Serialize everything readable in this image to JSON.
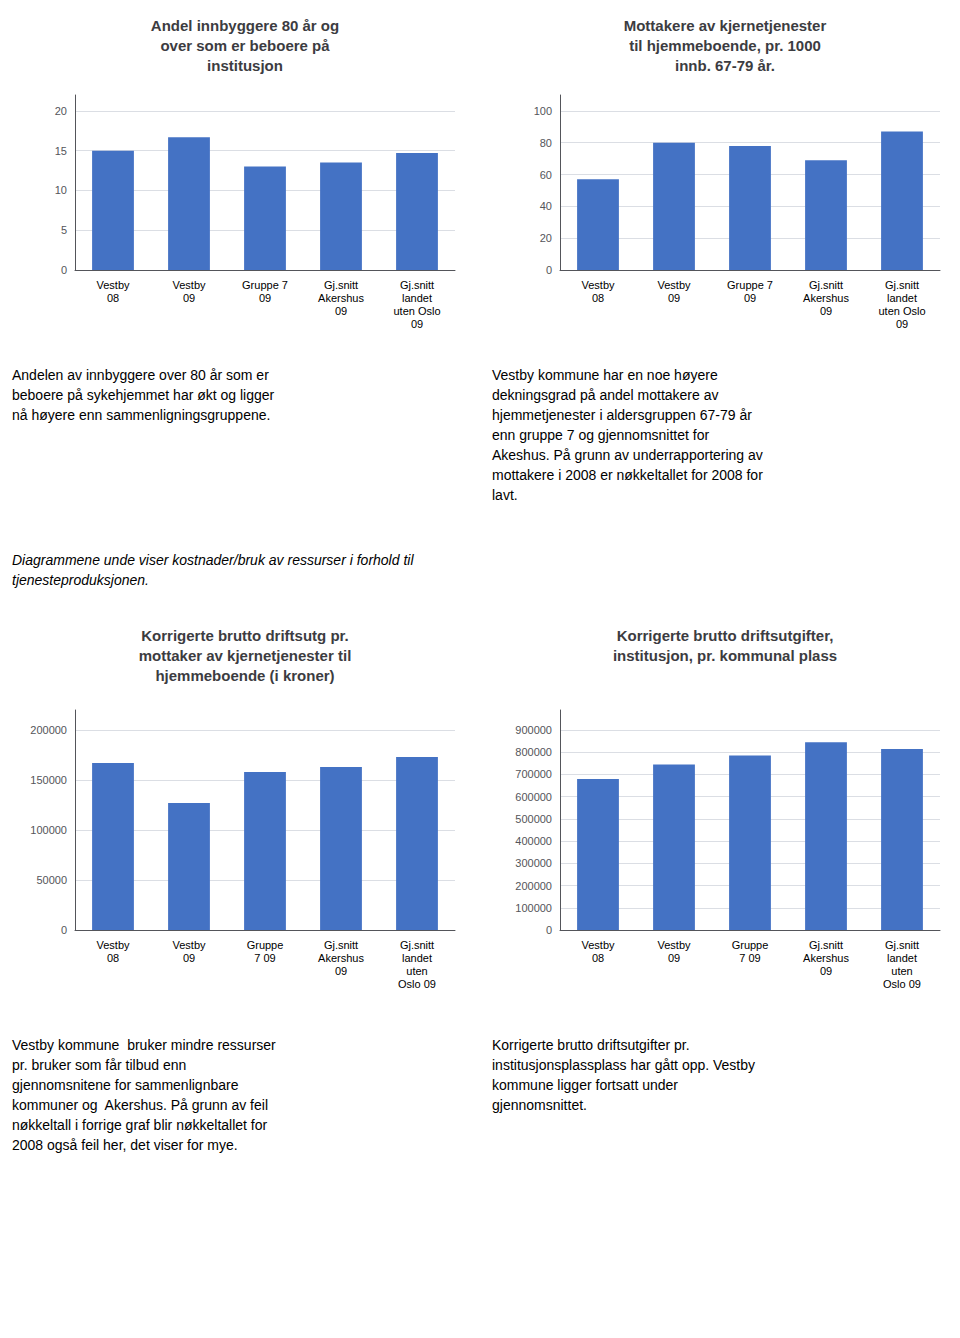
{
  "chart_data": [
    {
      "type": "bar",
      "title": "Andel innbyggere 80 år og\nover som er beboere på\ninstitusjon",
      "categories": [
        "Vestby\n08",
        "Vestby\n09",
        "Gruppe 7\n09",
        "Gj.snitt\nAkershus\n09",
        "Gj.snitt\nlandet\nuten Oslo\n09"
      ],
      "values": [
        15.0,
        16.7,
        13.0,
        13.5,
        14.7
      ],
      "color": "#4472C4",
      "ylim": [
        0,
        22
      ],
      "yticks": [
        0,
        5,
        10,
        15,
        20
      ],
      "grid": true
    },
    {
      "type": "bar",
      "title": "Mottakere av kjernetjenester\ntil hjemmeboende, pr. 1000\ninnb. 67-79 år.",
      "categories": [
        "Vestby\n08",
        "Vestby\n09",
        "Gruppe 7\n09",
        "Gj.snitt\nAkershus\n09",
        "Gj.snitt\nlandet\nuten Oslo\n09"
      ],
      "values": [
        57.0,
        80.0,
        78.0,
        69.0,
        87.0
      ],
      "color": "#4472C4",
      "ylim": [
        0,
        110
      ],
      "yticks": [
        0,
        20,
        40,
        60,
        80,
        100
      ],
      "grid": true
    },
    {
      "type": "bar",
      "title": "Korrigerte brutto driftsutg pr.\nmottaker av kjernetjenester til\nhjemmeboende (i kroner)",
      "categories": [
        "Vestby\n08",
        "Vestby\n09",
        "Gruppe\n7 09",
        "Gj.snitt\nAkershus\n09",
        "Gj.snitt\nlandet\nuten\nOslo 09"
      ],
      "values": [
        167000,
        127000,
        158000,
        163000,
        173000
      ],
      "color": "#4472C4",
      "ylim": [
        0,
        220000
      ],
      "yticks": [
        0,
        50000,
        100000,
        150000,
        200000
      ],
      "grid": true
    },
    {
      "type": "bar",
      "title": "Korrigerte brutto driftsutgifter,\ninstitusjon, pr. kommunal plass",
      "categories": [
        "Vestby\n08",
        "Vestby\n09",
        "Gruppe\n7 09",
        "Gj.snitt\nAkershus\n09",
        "Gj.snitt\nlandet\nuten\nOslo 09"
      ],
      "values": [
        680000,
        745000,
        785000,
        845000,
        815000
      ],
      "color": "#4472C4",
      "ylim": [
        0,
        990000
      ],
      "yticks": [
        0,
        100000,
        200000,
        300000,
        400000,
        500000,
        600000,
        700000,
        800000,
        900000
      ],
      "grid": true
    }
  ],
  "annotations": [
    "Andelen av innbyggere over 80 år som er\nbeboere på sykehjemmet har økt og ligger\nnå høyere enn sammenligningsgruppene.",
    "Vestby kommune har en noe høyere\ndekningsgrad på andel mottakere av\nhjemmetjenester i aldersgruppen 67-79 år\nenn gruppe 7 og gjennomsnittet for\nAkeshus. På grunn av underrapportering av\nmottakere i 2008 er nøkkeltallet for 2008 for\nlavt.",
    "Diagrammene unde viser kostnader/bruk av ressurser i forhold til\ntjenesteproduksjonen.",
    "Vestby kommune  bruker mindre ressurser\npr. bruker som får tilbud enn\ngjennomsnitene for sammenlignbare\nkommuner og  Akershus. På grunn av feil\nnøkkeltall i forrige graf blir nøkkeltallet for\n2008 også feil her, det viser for mye.",
    "Korrigerte brutto driftsutgifter pr.\ninstitusjonsplassplass har gått opp. Vestby\nkommune ligger fortsatt under\ngjennomsnittet."
  ]
}
